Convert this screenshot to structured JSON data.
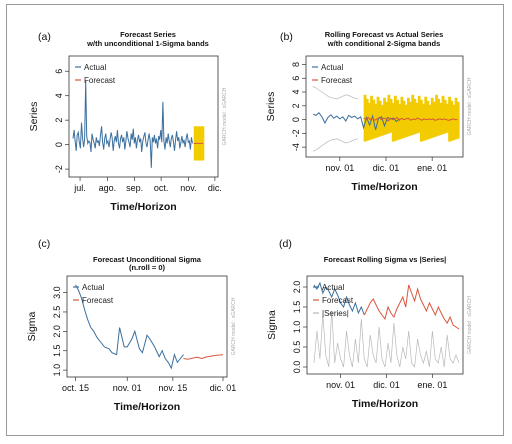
{
  "colors": {
    "actual": "#3a6f9e",
    "forecast": "#d9553c",
    "band": "#f2cc00",
    "sigma_line": "#b8b8b8"
  },
  "side_note": "GARCH model : sGARCH",
  "chart_data": [
    {
      "id": "a",
      "panel_label": "(a)",
      "type": "line",
      "title": "Forecast Series",
      "subtitle": "w/th unconditional 1-Sigma bands",
      "xlabel": "Time/Horizon",
      "ylabel": "Series",
      "ylim": [
        -2.4,
        7
      ],
      "xlim": [
        0,
        160
      ],
      "yticks": [
        {
          "v": 6,
          "label": "6"
        },
        {
          "v": 4,
          "label": "4"
        },
        {
          "v": 2,
          "label": "2"
        },
        {
          "v": 0,
          "label": "0"
        },
        {
          "v": -2,
          "label": "-2"
        }
      ],
      "xticks": [
        {
          "v": 8,
          "label": "jul."
        },
        {
          "v": 39,
          "label": "ago."
        },
        {
          "v": 70,
          "label": "sep."
        },
        {
          "v": 100,
          "label": "oct."
        },
        {
          "v": 131,
          "label": "nov."
        },
        {
          "v": 161,
          "label": "dic."
        }
      ],
      "legend": [
        "Actual",
        "Forecast"
      ],
      "series": [
        {
          "name": "Actual",
          "role": "actual",
          "x0": 0,
          "dx": 1.2,
          "values": [
            0.5,
            1.2,
            0.3,
            -0.5,
            0.8,
            1.0,
            0.2,
            -0.3,
            1.8,
            0.6,
            -0.2,
            0.4,
            5.2,
            0.7,
            0.1,
            0.3,
            0.2,
            -0.6,
            0.9,
            0.4,
            0.1,
            -0.3,
            0.6,
            0.2,
            0.3,
            -0.1,
            0.8,
            1.5,
            0.2,
            -0.4,
            0.5,
            0.9,
            0.1,
            0.3,
            -0.2,
            0.4,
            1.0,
            0.6,
            -0.5,
            0.3,
            0.7,
            0.2,
            1.2,
            0.1,
            -0.3,
            0.5,
            0.8,
            0.2,
            0.6,
            -0.4,
            0.3,
            1.1,
            0.5,
            0.2,
            -0.2,
            0.9,
            0.4,
            1.3,
            0.1,
            0.6,
            -0.3,
            0.4,
            0.8,
            0.2,
            0.5,
            -0.6,
            0.3,
            0.7,
            1.0,
            0.1,
            -0.2,
            0.4,
            0.9,
            0.3,
            -1.9,
            0.6,
            0.2,
            0.8,
            0.1,
            0.5,
            -0.3,
            0.7,
            0.4,
            1.2,
            0.2,
            3.5,
            0.3,
            -0.4,
            0.6,
            0.1,
            0.9,
            0.3,
            -0.2,
            0.5,
            0.8,
            0.2,
            -0.5,
            0.4,
            1.1,
            0.3,
            0.6,
            -0.3,
            0.2,
            0.7,
            0.1,
            0.4,
            -0.2,
            0.5,
            0.9,
            0.2,
            0.3,
            -0.4,
            0.6,
            0.1
          ]
        },
        {
          "name": "Forecast",
          "role": "forecast",
          "x0": 137,
          "dx": 1.2,
          "values": [
            0.1,
            0.1,
            0.1,
            0.1,
            0.1,
            0.1,
            0.1,
            0.1,
            0.1,
            0.1
          ]
        }
      ],
      "band": {
        "x0": 137,
        "x1": 149,
        "lower": -1.3,
        "upper": 1.5
      }
    },
    {
      "id": "b",
      "panel_label": "(b)",
      "type": "line",
      "title": "Rolling Forecast vs Actual Series",
      "subtitle": "w/th conditional 2-Sigma bands",
      "xlabel": "Time/Horizon",
      "ylabel": "Series",
      "ylim": [
        -5,
        8.8
      ],
      "xlim": [
        0,
        100
      ],
      "yticks": [
        {
          "v": 8,
          "label": "8"
        },
        {
          "v": 6,
          "label": "6"
        },
        {
          "v": 4,
          "label": "4"
        },
        {
          "v": 2,
          "label": "2"
        },
        {
          "v": 0,
          "label": "0"
        },
        {
          "v": -2,
          "label": "-2"
        },
        {
          "v": -4,
          "label": "-4"
        }
      ],
      "xticks": [
        {
          "v": 20,
          "label": "nov. 01"
        },
        {
          "v": 51,
          "label": "dic. 01"
        },
        {
          "v": 82,
          "label": "ene. 01"
        }
      ],
      "legend": [
        "Actual",
        "Forecast"
      ],
      "series": [
        {
          "name": "Actual",
          "role": "actual",
          "x0": 2,
          "dx": 2.0,
          "values": [
            0.8,
            0.6,
            1.0,
            0.4,
            -0.5,
            0.3,
            0.7,
            0.2,
            0.5,
            0.1,
            0.4,
            -0.2,
            0.6,
            0.3,
            0.5,
            0.1,
            0.4,
            -1.2,
            0.3,
            -0.8,
            0.5,
            -1.5,
            0.2,
            0.4,
            -0.9,
            0.3,
            0.1,
            0.2,
            -0.3,
            0.1
          ]
        },
        {
          "name": "Forecast",
          "role": "forecast",
          "x0": 36,
          "dx": 1.5,
          "values": [
            0.2,
            0.1,
            0.3,
            0.0,
            0.2,
            -0.1,
            0.1,
            0.3,
            0.0,
            0.2,
            0.1,
            -0.2,
            0.2,
            0.0,
            0.1,
            0.3,
            -0.1,
            0.2,
            0.0,
            0.1,
            0.2,
            -0.1,
            0.1,
            0.0,
            0.2,
            0.1,
            -0.1,
            0.1,
            0.0,
            0.1,
            0.0,
            0.1,
            -0.1,
            0.0,
            0.1,
            0.0,
            0.1,
            0.0,
            -0.1,
            0.0,
            0.1,
            0.0,
            0.0
          ]
        },
        {
          "name": "Sigma band upper",
          "role": "sigma",
          "x0": 2,
          "dx": 2.0,
          "values": [
            4.8,
            4.6,
            4.3,
            4.0,
            3.7,
            3.4,
            3.2,
            3.1,
            3.0,
            3.2,
            3.4,
            3.6,
            3.5,
            3.3,
            3.1,
            3.0
          ]
        },
        {
          "name": "Sigma band lower",
          "role": "sigma",
          "x0": 2,
          "dx": 2.0,
          "values": [
            -4.6,
            -4.4,
            -4.1,
            -3.8,
            -3.5,
            -3.2,
            -3.0,
            -2.9,
            -2.8,
            -3.0,
            -3.2,
            -3.4,
            -3.3,
            -3.1,
            -2.9,
            -2.8
          ]
        }
      ],
      "band": {
        "x0": 36,
        "x1": 100,
        "lower": -3.2,
        "upper": 3.6,
        "jagged": true
      }
    },
    {
      "id": "c",
      "panel_label": "(c)",
      "type": "line",
      "title": "Forecast Unconditional Sigma",
      "subtitle": "(n.roll = 0)",
      "xlabel": "Time/Horizon",
      "ylabel": "Sigma",
      "ylim": [
        0.9,
        3.35
      ],
      "xlim": [
        0,
        100
      ],
      "yticks": [
        {
          "v": 3.0,
          "label": "3.0"
        },
        {
          "v": 2.5,
          "label": "2.5"
        },
        {
          "v": 2.0,
          "label": "2.0"
        },
        {
          "v": 1.5,
          "label": "1.5"
        },
        {
          "v": 1.0,
          "label": "1.0"
        }
      ],
      "xticks": [
        {
          "v": 3,
          "label": "oct. 15"
        },
        {
          "v": 37,
          "label": "nov. 01"
        },
        {
          "v": 67,
          "label": "nov. 15"
        },
        {
          "v": 100,
          "label": "dic. 01"
        }
      ],
      "legend": [
        "Actual",
        "Forecast"
      ],
      "series": [
        {
          "name": "Actual",
          "role": "actual",
          "x": [
            3,
            5,
            7,
            9,
            11,
            13,
            15,
            17,
            20,
            22,
            25,
            27,
            30,
            32,
            35,
            37,
            40,
            42,
            45,
            47,
            50,
            52,
            55,
            58,
            60,
            62,
            64,
            66,
            68,
            70,
            72,
            74
          ],
          "values": [
            3.2,
            3.05,
            2.85,
            2.55,
            2.3,
            2.1,
            2.0,
            1.85,
            1.7,
            1.6,
            1.55,
            1.45,
            1.4,
            2.1,
            1.6,
            1.6,
            1.8,
            2.0,
            1.55,
            1.45,
            1.9,
            1.8,
            1.6,
            1.35,
            1.5,
            1.3,
            1.2,
            1.05,
            1.4,
            1.2,
            1.3,
            1.4
          ]
        },
        {
          "name": "Forecast",
          "role": "forecast",
          "x": [
            74,
            77,
            80,
            83,
            86,
            89,
            92,
            95,
            98,
            100
          ],
          "values": [
            1.3,
            1.28,
            1.31,
            1.33,
            1.3,
            1.34,
            1.36,
            1.38,
            1.39,
            1.4
          ]
        }
      ]
    },
    {
      "id": "d",
      "panel_label": "(d)",
      "type": "line",
      "title": "Forecast Rolling Sigma vs |Series|",
      "subtitle": "",
      "xlabel": "Time/Horizon",
      "ylabel": "Sigma",
      "ylim": [
        -0.1,
        2.2
      ],
      "xlim": [
        0,
        100
      ],
      "yticks": [
        {
          "v": 2.0,
          "label": "2.0"
        },
        {
          "v": 1.5,
          "label": "1.5"
        },
        {
          "v": 1.0,
          "label": "1.0"
        },
        {
          "v": 0.5,
          "label": "0.5"
        },
        {
          "v": 0.0,
          "label": "0.0"
        }
      ],
      "xticks": [
        {
          "v": 20,
          "label": "nov. 01"
        },
        {
          "v": 51,
          "label": "dic. 01"
        },
        {
          "v": 82,
          "label": "ene. 01"
        }
      ],
      "legend": [
        "Actual",
        "Forecast",
        "|Series|"
      ],
      "series": [
        {
          "name": "Actual",
          "role": "actual",
          "x": [
            2,
            4,
            6,
            8,
            10,
            12,
            14,
            16,
            18,
            20,
            22,
            24,
            26,
            28,
            30,
            32,
            34,
            36
          ],
          "values": [
            2.05,
            1.95,
            2.1,
            1.85,
            2.0,
            1.9,
            1.75,
            1.95,
            1.8,
            1.6,
            1.5,
            1.75,
            1.55,
            1.4,
            1.6,
            1.35,
            1.5,
            1.3
          ]
        },
        {
          "name": "Forecast",
          "role": "forecast",
          "x": [
            36,
            38,
            40,
            42,
            44,
            46,
            48,
            50,
            52,
            54,
            56,
            58,
            60,
            62,
            64,
            66,
            68,
            70,
            72,
            74,
            76,
            78,
            80,
            82,
            84,
            86,
            88,
            90,
            92,
            94,
            96,
            98,
            100
          ],
          "values": [
            1.3,
            1.45,
            1.6,
            1.7,
            1.55,
            1.4,
            1.3,
            1.2,
            1.5,
            1.35,
            1.25,
            1.45,
            1.6,
            1.75,
            1.5,
            2.05,
            1.85,
            1.65,
            1.95,
            1.7,
            1.55,
            1.4,
            1.6,
            1.45,
            1.3,
            1.5,
            1.35,
            1.2,
            1.1,
            1.25,
            1.05,
            1.0,
            0.95
          ]
        },
        {
          "name": "|Series|",
          "role": "abs",
          "x": [
            2,
            4,
            6,
            8,
            10,
            12,
            14,
            16,
            18,
            20,
            22,
            24,
            26,
            28,
            30,
            32,
            34,
            36,
            38,
            40,
            42,
            44,
            46,
            48,
            50,
            52,
            54,
            56,
            58,
            60,
            62,
            64,
            66,
            68,
            70,
            72,
            74,
            76,
            78,
            80,
            82,
            84,
            86,
            88,
            90,
            92,
            94,
            96,
            98,
            100
          ],
          "values": [
            0.1,
            0.9,
            0.2,
            1.3,
            0.3,
            0.0,
            1.4,
            0.1,
            0.6,
            0.2,
            0.0,
            0.9,
            0.3,
            0.0,
            0.7,
            0.1,
            1.2,
            0.2,
            0.0,
            0.8,
            0.3,
            0.1,
            1.0,
            0.2,
            0.0,
            0.6,
            0.1,
            1.1,
            0.3,
            0.0,
            0.5,
            0.2,
            0.9,
            0.1,
            0.0,
            0.7,
            0.3,
            0.1,
            0.4,
            0.0,
            0.9,
            0.2,
            0.1,
            0.5,
            0.0,
            0.8,
            0.2,
            0.1,
            0.3,
            0.1
          ]
        }
      ]
    }
  ]
}
